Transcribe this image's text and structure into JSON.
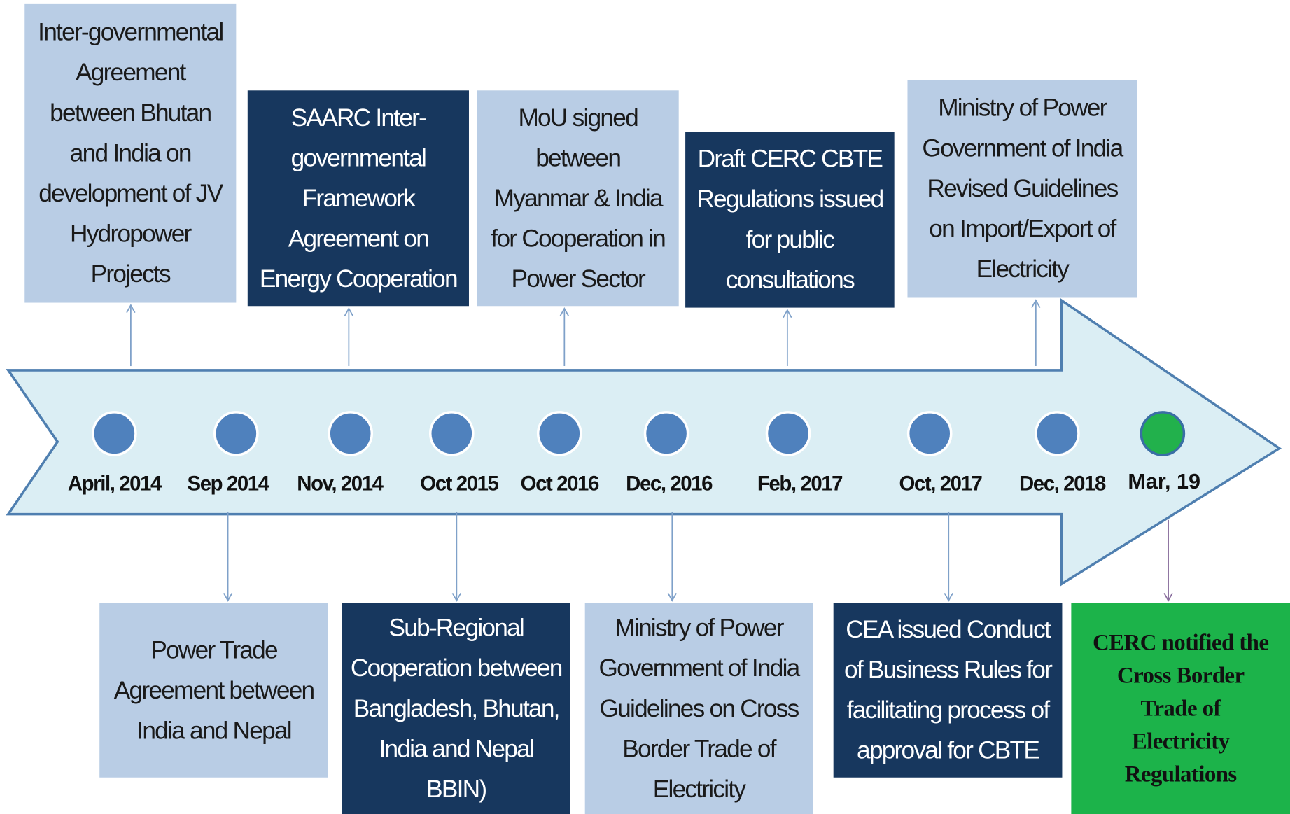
{
  "timeline": {
    "dates": [
      "April, 2014",
      "Sep 2014",
      "Nov, 2014",
      "Oct 2015",
      "Oct 2016",
      "Dec, 2016",
      "Feb, 2017",
      "Oct, 2017",
      "Dec, 2018",
      "Mar, 19"
    ],
    "top_events": [
      {
        "text": "Inter-governmental\nAgreement\nbetween Bhutan\nand India on\ndevelopment of JV\nHydropower\nProjects"
      },
      {
        "text": "SAARC Inter-\ngovernmental\nFramework\nAgreement on\nEnergy Cooperation"
      },
      {
        "text": "MoU signed\nbetween\nMyanmar & India\nfor Cooperation in\nPower Sector"
      },
      {
        "text": "Draft CERC CBTE\nRegulations issued\nfor public\nconsultations"
      },
      {
        "text": "Ministry of Power\nGovernment of India\nRevised Guidelines\non Import/Export of\nElectricity"
      }
    ],
    "bottom_events": [
      {
        "text": "Power Trade\nAgreement between\nIndia and Nepal"
      },
      {
        "text": "Sub-Regional\nCooperation between\nBangladesh, Bhutan,\nIndia and Nepal\nBBIN)"
      },
      {
        "text": "Ministry of Power\nGovernment of India\nGuidelines on Cross\nBorder Trade of\nElectricity"
      },
      {
        "text": "CEA issued Conduct\nof Business Rules for\nfacilitating process of\napproval for CBTE"
      },
      {
        "text": "CERC notified the\nCross Border\nTrade of\nElectricity\nRegulations"
      }
    ]
  }
}
